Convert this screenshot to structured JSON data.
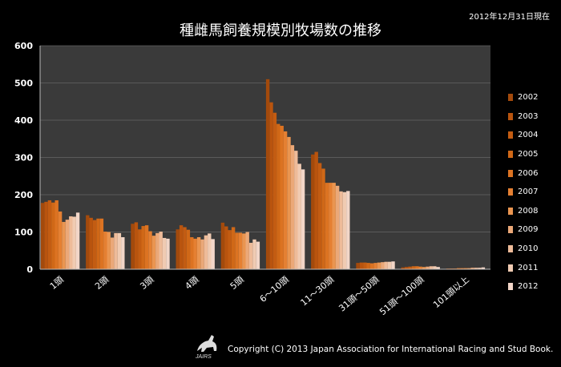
{
  "page": {
    "title": "種雌馬飼養規模別牧場数の推移",
    "date_note": "2012年12月31日現在",
    "copyright": "Copyright (C) 2013 Japan Association for International Racing and Stud Book.",
    "logo_text": "JAIRS"
  },
  "colors": {
    "background": "#000000",
    "plot_background": "#3a3a3a",
    "series": [
      "#a34a0c",
      "#b9540e",
      "#c35c12",
      "#d06817",
      "#dc7322",
      "#e58032",
      "#ea9550",
      "#eba878",
      "#eebb99",
      "#f0cbb2",
      "#f2d6c8"
    ]
  },
  "chart_data": {
    "type": "bar",
    "title": "種雌馬飼養規模別牧場数の推移",
    "ylim": [
      0,
      600
    ],
    "yticks": [
      0,
      100,
      200,
      300,
      400,
      500,
      600
    ],
    "grid": true,
    "legend_position": "right",
    "categories": [
      "1頭",
      "2頭",
      "3頭",
      "4頭",
      "5頭",
      "6～10頭",
      "11～30頭",
      "31頭～50頭",
      "51頭～100頭",
      "101頭以上"
    ],
    "series": [
      {
        "name": "2002",
        "values": [
          178,
          145,
          122,
          107,
          125,
          510,
          308,
          17,
          5,
          2
        ]
      },
      {
        "name": "2003",
        "values": [
          181,
          138,
          126,
          118,
          115,
          448,
          315,
          18,
          6,
          2
        ]
      },
      {
        "name": "2004",
        "values": [
          185,
          132,
          107,
          113,
          105,
          420,
          285,
          18,
          7,
          2
        ]
      },
      {
        "name": "2005",
        "values": [
          179,
          136,
          116,
          106,
          113,
          390,
          270,
          17,
          8,
          3
        ]
      },
      {
        "name": "2006",
        "values": [
          185,
          136,
          118,
          86,
          98,
          385,
          232,
          16,
          8,
          3
        ]
      },
      {
        "name": "2007",
        "values": [
          155,
          101,
          102,
          82,
          98,
          370,
          232,
          17,
          7,
          3
        ]
      },
      {
        "name": "2008",
        "values": [
          127,
          100,
          90,
          86,
          96,
          355,
          232,
          18,
          6,
          3
        ]
      },
      {
        "name": "2009",
        "values": [
          133,
          85,
          97,
          80,
          100,
          333,
          224,
          19,
          7,
          4
        ]
      },
      {
        "name": "2010",
        "values": [
          142,
          97,
          101,
          91,
          71,
          318,
          209,
          20,
          8,
          4
        ]
      },
      {
        "name": "2011",
        "values": [
          141,
          97,
          84,
          96,
          80,
          283,
          207,
          20,
          8,
          4
        ]
      },
      {
        "name": "2012",
        "values": [
          152,
          86,
          82,
          81,
          74,
          268,
          210,
          21,
          6,
          5
        ]
      }
    ]
  }
}
